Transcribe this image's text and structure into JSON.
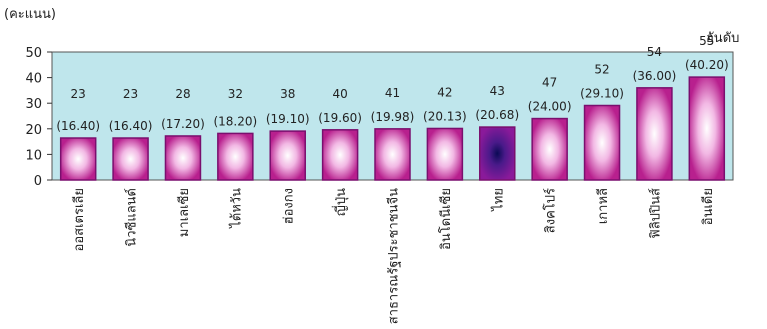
{
  "chart_data": {
    "type": "bar",
    "ylabel": "(คะแนน)",
    "rank_label": "อันดับ",
    "ylim": [
      0,
      50
    ],
    "yticks": [
      0,
      10,
      20,
      30,
      40,
      50
    ],
    "grid": false,
    "categories": [
      "ออสเตรเลีย",
      "นิวซีแลนด์",
      "มาเลเซีย",
      "ไต้หวัน",
      "ฮ่องกง",
      "ญี่ปุ่น",
      "สาธารณรัฐประชาชนจีน",
      "อินโดนีเซีย",
      "ไทย",
      "สิงคโปร์",
      "เกาหลี",
      "ฟิลิปปินส์",
      "อินเดีย"
    ],
    "values": [
      16.4,
      16.4,
      17.2,
      18.2,
      19.1,
      19.6,
      19.98,
      20.13,
      20.68,
      24.0,
      29.1,
      36.0,
      40.2
    ],
    "value_labels": [
      "(16.40)",
      "(16.40)",
      "(17.20)",
      "(18.20)",
      "(19.10)",
      "(19.60)",
      "(19.98)",
      "(20.13)",
      "(20.68)",
      "(24.00)",
      "(29.10)",
      "(36.00)",
      "(40.20)"
    ],
    "ranks": [
      "23",
      "23",
      "28",
      "32",
      "38",
      "40",
      "41",
      "42",
      "43",
      "47",
      "52",
      "54",
      "55"
    ],
    "highlight_index": 8,
    "colors": {
      "plot_bg": "#bfe6ec",
      "bar_edge": "#7a0f6e",
      "bar_fill": "#b8208e",
      "bar_glow": "#ffffff",
      "highlight_fill": "#7a1890",
      "highlight_core": "#0a0a55"
    }
  }
}
